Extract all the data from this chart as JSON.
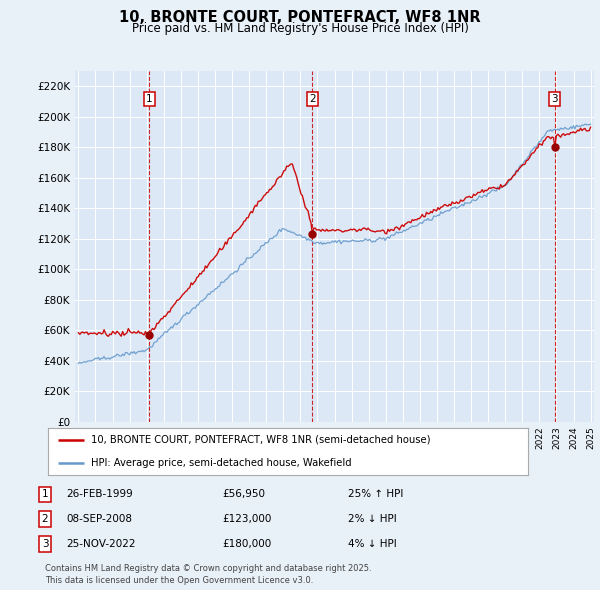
{
  "title": "10, BRONTE COURT, PONTEFRACT, WF8 1NR",
  "subtitle": "Price paid vs. HM Land Registry's House Price Index (HPI)",
  "background_color": "#e8f0f8",
  "plot_bg_color": "#dce8f5",
  "transactions": [
    {
      "label": "1",
      "date": "26-FEB-1999",
      "price": 56950,
      "year": 1999.15,
      "pct": "25%",
      "dir": "↑",
      "vs": "HPI"
    },
    {
      "label": "2",
      "date": "08-SEP-2008",
      "price": 123000,
      "year": 2008.69,
      "pct": "2%",
      "dir": "↓",
      "vs": "HPI"
    },
    {
      "label": "3",
      "date": "25-NOV-2022",
      "price": 180000,
      "year": 2022.9,
      "pct": "4%",
      "dir": "↓",
      "vs": "HPI"
    }
  ],
  "legend_line1": "10, BRONTE COURT, PONTEFRACT, WF8 1NR (semi-detached house)",
  "legend_line2": "HPI: Average price, semi-detached house, Wakefield",
  "footer1": "Contains HM Land Registry data © Crown copyright and database right 2025.",
  "footer2": "This data is licensed under the Open Government Licence v3.0.",
  "ylim": [
    0,
    230000
  ],
  "ytick_step": 20000,
  "year_start": 1995,
  "year_end": 2025,
  "red_color": "#cc0000",
  "blue_color": "#6699cc",
  "vline_color": "#cc0000",
  "box_edge_color": "#cc0000"
}
